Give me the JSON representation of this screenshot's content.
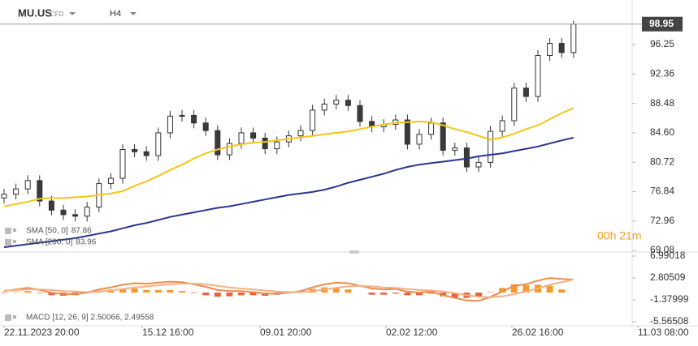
{
  "header": {
    "symbol": "MU.US",
    "instrument": "CFD",
    "interval": "H4"
  },
  "chart_data": [
    {
      "type": "candlestick",
      "open": [
        76.0,
        76.5,
        77.2,
        78.3,
        75.6,
        74.4,
        73.8,
        73.6,
        74.8,
        77.9,
        78.6,
        82.4,
        82.1,
        81.6,
        84.6,
        86.8,
        86.9,
        85.9,
        84.9,
        81.7,
        83.2,
        84.6,
        83.9,
        82.5,
        83.4,
        84.2,
        84.9,
        87.6,
        88.4,
        88.9,
        88.2,
        86.1,
        85.4,
        85.7,
        86.3,
        83.1,
        84.4,
        85.9,
        82.3,
        82.6,
        80.1,
        80.7,
        84.8,
        86.2,
        90.5,
        89.4,
        94.8,
        96.4,
        95.2
      ],
      "high": [
        77.2,
        77.9,
        79.0,
        79.0,
        76.3,
        75.1,
        74.5,
        75.5,
        78.6,
        79.3,
        83.1,
        83.1,
        82.8,
        85.3,
        87.5,
        87.6,
        87.6,
        86.6,
        85.6,
        83.9,
        85.3,
        85.3,
        84.6,
        84.1,
        84.9,
        85.6,
        88.3,
        89.1,
        89.6,
        89.6,
        88.9,
        86.8,
        86.4,
        87.0,
        87.0,
        85.1,
        86.6,
        86.6,
        83.3,
        83.3,
        81.4,
        85.5,
        86.9,
        91.2,
        91.2,
        95.5,
        97.1,
        97.1,
        99.4
      ],
      "low": [
        75.3,
        75.8,
        76.5,
        74.9,
        73.7,
        73.1,
        72.9,
        72.9,
        74.1,
        77.2,
        77.9,
        81.4,
        80.9,
        80.9,
        83.9,
        86.1,
        85.2,
        84.2,
        81.0,
        81.0,
        82.5,
        83.2,
        81.8,
        81.8,
        82.7,
        83.5,
        84.2,
        86.9,
        87.7,
        87.5,
        85.4,
        84.7,
        84.7,
        85.0,
        82.4,
        82.4,
        83.7,
        81.6,
        81.6,
        79.4,
        79.4,
        80.0,
        84.1,
        85.5,
        88.7,
        88.7,
        94.1,
        94.5,
        94.5
      ],
      "close": [
        76.5,
        77.2,
        78.3,
        75.6,
        74.4,
        73.8,
        73.6,
        74.8,
        77.9,
        78.6,
        82.4,
        82.1,
        81.6,
        84.6,
        86.8,
        86.9,
        85.9,
        84.9,
        81.7,
        83.2,
        84.6,
        83.9,
        82.5,
        83.4,
        84.2,
        84.9,
        87.6,
        88.4,
        88.9,
        88.2,
        86.1,
        85.4,
        85.7,
        86.3,
        83.1,
        84.4,
        85.9,
        82.3,
        82.6,
        80.1,
        80.7,
        84.8,
        86.2,
        90.5,
        89.4,
        94.8,
        96.4,
        95.2,
        98.95
      ],
      "up_color": "#ffffff",
      "down_color": "#3a3a3a",
      "series": [
        {
          "name": "SMA [50, 0]",
          "color": "#f5c518",
          "values": [
            74.9,
            75.2,
            75.5,
            75.9,
            76.0,
            76.0,
            76.1,
            76.2,
            76.4,
            76.6,
            76.9,
            77.6,
            78.2,
            78.9,
            79.7,
            80.4,
            81.2,
            81.9,
            82.4,
            82.8,
            83.1,
            83.3,
            83.4,
            83.6,
            83.8,
            84.0,
            84.2,
            84.4,
            84.6,
            84.8,
            85.1,
            85.4,
            85.7,
            85.9,
            86.0,
            86.1,
            86.0,
            85.6,
            85.1,
            84.7,
            84.2,
            83.7,
            84.0,
            84.5,
            85.1,
            85.6,
            86.4,
            87.2,
            87.86
          ]
        },
        {
          "name": "SMA [200, 0]",
          "color": "#2b3590",
          "values": [
            69.5,
            69.7,
            69.9,
            70.1,
            70.3,
            70.5,
            70.7,
            71.0,
            71.3,
            71.6,
            72.0,
            72.4,
            72.7,
            73.1,
            73.5,
            73.8,
            74.1,
            74.4,
            74.7,
            74.9,
            75.2,
            75.5,
            75.8,
            76.1,
            76.4,
            76.6,
            76.8,
            77.1,
            77.5,
            78.0,
            78.4,
            78.8,
            79.2,
            79.7,
            80.1,
            80.4,
            80.6,
            80.8,
            81.0,
            81.2,
            81.5,
            81.7,
            81.9,
            82.2,
            82.5,
            82.8,
            83.2,
            83.6,
            83.96
          ]
        }
      ],
      "last_price": 98.95,
      "countdown": "00h 21m",
      "ylim": [
        68.98,
        101.06
      ],
      "yticks": [
        69.08,
        72.96,
        76.84,
        80.72,
        {
          "value": 84.6,
          "label": "84.60"
        },
        88.48,
        92.36,
        96.25
      ],
      "grid": false
    },
    {
      "type": "macd",
      "legend": "MACD [12, 26, 9] 2.50066, 2.49558",
      "series": [
        {
          "color": "#f08a4b",
          "values": [
            0.3,
            0.6,
            0.9,
            0.5,
            0.0,
            -0.3,
            -0.3,
            0.0,
            0.6,
            1.0,
            1.5,
            1.8,
            1.7,
            1.9,
            2.1,
            2.0,
            1.6,
            1.1,
            0.5,
            0.3,
            0.3,
            0.1,
            -0.2,
            -0.2,
            0.0,
            0.3,
            1.0,
            1.6,
            1.9,
            1.8,
            1.3,
            0.8,
            0.6,
            0.7,
            0.2,
            0.0,
            0.2,
            -0.5,
            -1.0,
            -1.5,
            -1.6,
            -0.8,
            0.2,
            1.3,
            1.6,
            2.3,
            2.8,
            2.6,
            2.50066
          ]
        },
        {
          "color": "#f4b183",
          "values": [
            0.4,
            0.5,
            0.6,
            0.6,
            0.5,
            0.3,
            0.2,
            0.1,
            0.2,
            0.4,
            0.7,
            1.0,
            1.2,
            1.4,
            1.6,
            1.7,
            1.7,
            1.6,
            1.3,
            1.0,
            0.8,
            0.6,
            0.4,
            0.2,
            0.1,
            0.1,
            0.3,
            0.6,
            0.9,
            1.2,
            1.3,
            1.2,
            1.0,
            0.9,
            0.7,
            0.5,
            0.4,
            0.2,
            -0.1,
            -0.5,
            -0.8,
            -0.9,
            -0.7,
            -0.3,
            0.2,
            0.8,
            1.5,
            2.0,
            2.49558
          ]
        }
      ],
      "histogram": {
        "up_color": "#f29a2e",
        "down_color": "#e8603c",
        "values": [
          -0.1,
          0.1,
          0.3,
          -0.1,
          -0.5,
          -0.6,
          -0.5,
          -0.1,
          0.4,
          0.6,
          0.8,
          0.8,
          0.5,
          0.5,
          0.5,
          0.3,
          -0.1,
          -0.5,
          -0.8,
          -0.7,
          -0.5,
          -0.5,
          -0.6,
          -0.4,
          -0.1,
          0.2,
          0.7,
          1.0,
          1.0,
          0.6,
          0.0,
          -0.4,
          -0.4,
          -0.2,
          -0.5,
          -0.5,
          -0.2,
          -0.7,
          -0.9,
          -1.0,
          -0.8,
          0.1,
          0.9,
          1.6,
          1.4,
          1.5,
          1.3,
          0.6,
          0.00508
        ]
      },
      "ylim": [
        -6.34,
        7.77
      ],
      "yticks": [
        6.99018,
        2.80509,
        -1.37999,
        -5.56508
      ],
      "x_labels": [
        "22.11.2023 20:00",
        "15.12 16:00",
        "09.01 20:00",
        "02.02 12:00",
        "26.02 16:00",
        "11.03 08:00"
      ]
    }
  ]
}
